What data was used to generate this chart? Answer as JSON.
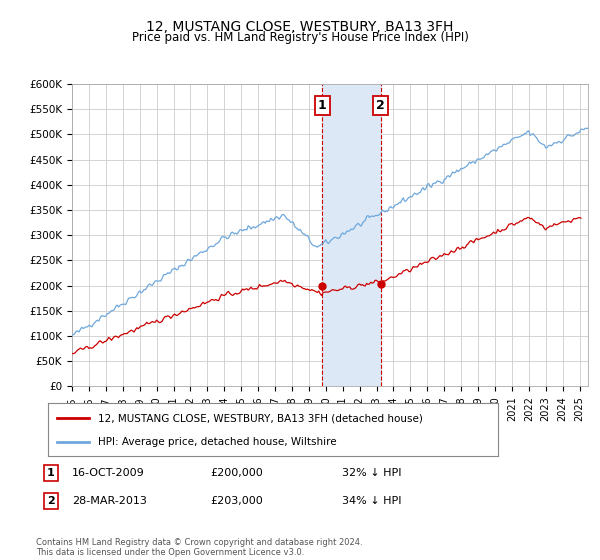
{
  "title": "12, MUSTANG CLOSE, WESTBURY, BA13 3FH",
  "subtitle": "Price paid vs. HM Land Registry's House Price Index (HPI)",
  "ylabel_ticks": [
    "£0",
    "£50K",
    "£100K",
    "£150K",
    "£200K",
    "£250K",
    "£300K",
    "£350K",
    "£400K",
    "£450K",
    "£500K",
    "£550K",
    "£600K"
  ],
  "ylim": [
    0,
    600000
  ],
  "xlim_start": 1995,
  "xlim_end": 2025.5,
  "legend_line1": "12, MUSTANG CLOSE, WESTBURY, BA13 3FH (detached house)",
  "legend_line2": "HPI: Average price, detached house, Wiltshire",
  "annotation1_label": "1",
  "annotation1_date": "16-OCT-2009",
  "annotation1_price": "£200,000",
  "annotation1_hpi": "32% ↓ HPI",
  "annotation1_year": 2009.79,
  "annotation1_value": 200000,
  "annotation2_label": "2",
  "annotation2_date": "28-MAR-2013",
  "annotation2_price": "£203,000",
  "annotation2_hpi": "34% ↓ HPI",
  "annotation2_year": 2013.24,
  "annotation2_value": 203000,
  "footer": "Contains HM Land Registry data © Crown copyright and database right 2024.\nThis data is licensed under the Open Government Licence v3.0.",
  "hpi_color": "#6fa8dc",
  "price_color": "#cc0000",
  "dot_color": "#cc0000",
  "shading_color": "#dce8f5",
  "annotation_box_color": "#cc0000",
  "background_color": "#ffffff",
  "grid_color": "#cccccc"
}
